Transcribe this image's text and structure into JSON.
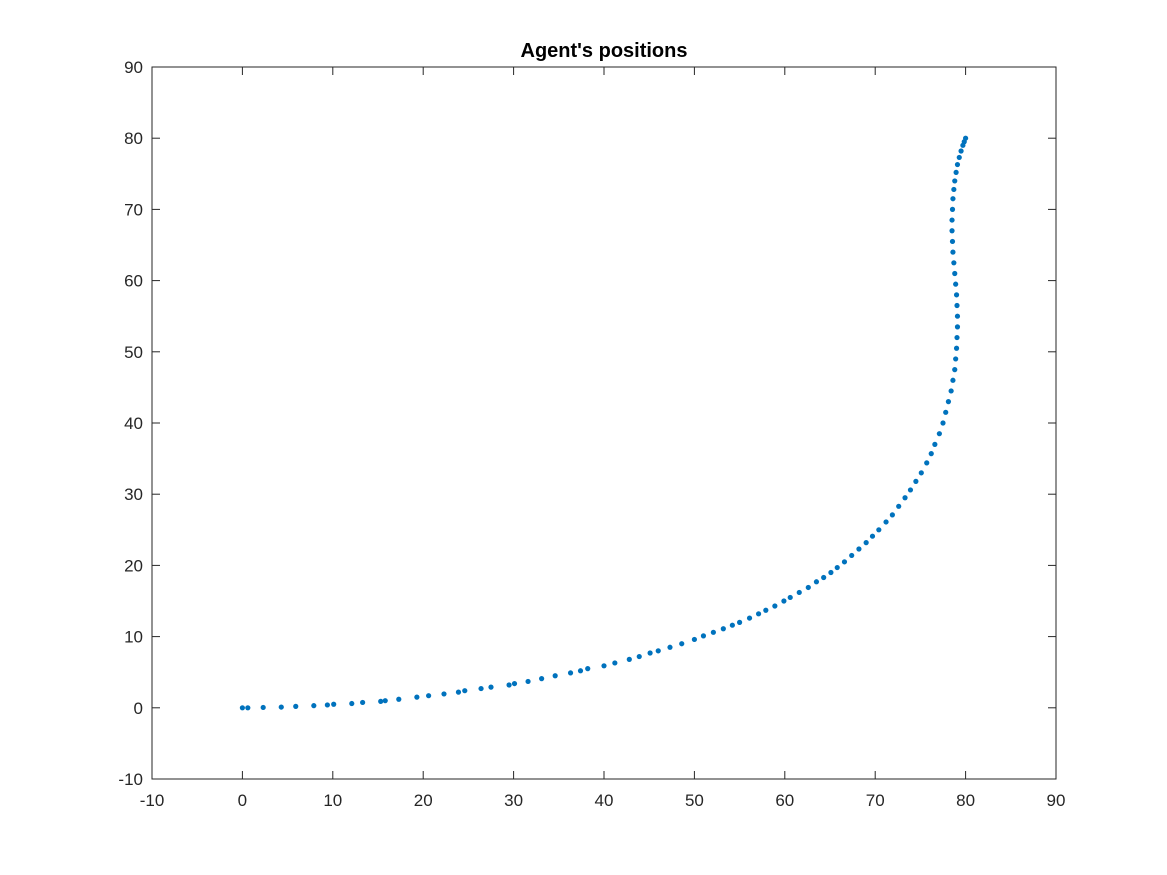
{
  "chart_data": {
    "type": "scatter",
    "title": "Agent's positions",
    "xlabel": "",
    "ylabel": "",
    "xlim": [
      -10,
      90
    ],
    "ylim": [
      -10,
      90
    ],
    "xticks": [
      -10,
      0,
      10,
      20,
      30,
      40,
      50,
      60,
      70,
      80,
      90
    ],
    "yticks": [
      -10,
      0,
      10,
      20,
      30,
      40,
      50,
      60,
      70,
      80,
      90
    ],
    "xtick_labels": [
      "-10",
      "0",
      "10",
      "20",
      "30",
      "40",
      "50",
      "60",
      "70",
      "80",
      "90"
    ],
    "ytick_labels": [
      "-10",
      "0",
      "10",
      "20",
      "30",
      "40",
      "50",
      "60",
      "70",
      "80",
      "90"
    ],
    "grid": false,
    "marker_color": "#0072BD",
    "series": [
      {
        "x": [
          0,
          0.6,
          2.3,
          4.3,
          5.9,
          7.9,
          9.4,
          10.1,
          12.1,
          13.3,
          15.3,
          15.8,
          17.3,
          19.3,
          20.6,
          22.3,
          23.9,
          24.6,
          26.4,
          27.5,
          29.5,
          30.1,
          31.6,
          33.1,
          34.6,
          36.3,
          37.4,
          38.2,
          40.0,
          41.2,
          42.8,
          43.9,
          45.1,
          46.0,
          47.3,
          48.6,
          50.0,
          51.0,
          52.1,
          53.2,
          54.2,
          55.0,
          56.1,
          57.1,
          57.9,
          58.9,
          59.9,
          60.6,
          61.6,
          62.6,
          63.5,
          64.3,
          65.1,
          65.8,
          66.6,
          67.4,
          68.2,
          69.0,
          69.7,
          70.4,
          71.2,
          71.9,
          72.6,
          73.3,
          73.9,
          74.5,
          75.1,
          75.7,
          76.2,
          76.6,
          77.1,
          77.5,
          77.8,
          78.1,
          78.4,
          78.6,
          78.8,
          78.9,
          79.0,
          79.05,
          79.1,
          79.1,
          79.05,
          79.0,
          78.9,
          78.8,
          78.7,
          78.6,
          78.55,
          78.5,
          78.5,
          78.55,
          78.6,
          78.7,
          78.8,
          78.95,
          79.1,
          79.3,
          79.5,
          79.7,
          79.85,
          80.0
        ],
        "y": [
          0,
          0,
          0.05,
          0.1,
          0.2,
          0.3,
          0.4,
          0.5,
          0.6,
          0.75,
          0.9,
          1.0,
          1.2,
          1.5,
          1.7,
          1.95,
          2.2,
          2.4,
          2.7,
          2.9,
          3.2,
          3.4,
          3.7,
          4.1,
          4.5,
          4.9,
          5.2,
          5.5,
          5.9,
          6.3,
          6.8,
          7.2,
          7.7,
          8.0,
          8.5,
          9.0,
          9.6,
          10.1,
          10.6,
          11.1,
          11.6,
          12.0,
          12.6,
          13.2,
          13.7,
          14.3,
          15.0,
          15.5,
          16.2,
          16.9,
          17.7,
          18.3,
          19.0,
          19.7,
          20.5,
          21.4,
          22.3,
          23.2,
          24.1,
          25.0,
          26.1,
          27.1,
          28.3,
          29.5,
          30.6,
          31.8,
          33.0,
          34.4,
          35.7,
          37.0,
          38.5,
          40.0,
          41.5,
          43.0,
          44.5,
          46.0,
          47.5,
          49.0,
          50.5,
          52.0,
          53.5,
          55.0,
          56.5,
          58.0,
          59.5,
          61.0,
          62.5,
          64.0,
          65.5,
          67.0,
          68.5,
          70.0,
          71.5,
          72.8,
          74.0,
          75.2,
          76.3,
          77.3,
          78.2,
          79.0,
          79.5,
          80.0
        ]
      }
    ]
  }
}
